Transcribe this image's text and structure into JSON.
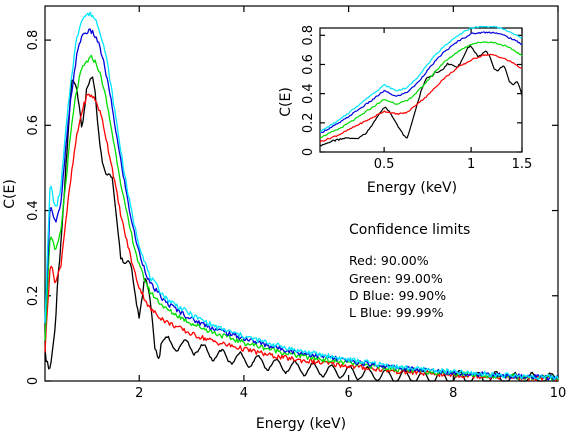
{
  "chart_data": [
    {
      "type": "line",
      "xlabel": "Energy (keV)",
      "ylabel": "C(E)",
      "xlim": [
        0.2,
        10
      ],
      "ylim": [
        0,
        0.88
      ],
      "x_ticks": [
        2,
        4,
        6,
        8,
        10
      ],
      "y_ticks": [
        0,
        0.2,
        0.4,
        0.6,
        0.8
      ],
      "x_tick_labels": [
        "2",
        "4",
        "6",
        "8",
        "10"
      ],
      "y_tick_labels": [
        "0",
        "0.2",
        "0.4",
        "0.6",
        "0.8"
      ],
      "legend": {
        "title": "Confidence limits",
        "entries": [
          "Red: 90.00%",
          "Green: 99.00%",
          "D Blue: 99.90%",
          "L Blue: 99.99%"
        ]
      },
      "series": [
        {
          "color": "#000000",
          "style": "oscillating",
          "x": [
            0.2,
            0.3,
            0.4,
            0.5,
            0.6,
            0.7,
            0.8,
            0.9,
            1.0,
            1.1,
            1.2,
            1.3,
            1.4,
            1.5,
            1.6,
            1.7,
            1.8,
            1.9,
            2.0,
            2.1,
            2.2,
            2.3,
            2.5,
            3.0,
            3.5,
            4.0,
            4.5,
            5.0,
            6.0,
            7.0,
            8.0,
            9.0,
            10.0
          ],
          "y": [
            0.09,
            0.06,
            0.1,
            0.3,
            0.55,
            0.7,
            0.65,
            0.62,
            0.72,
            0.68,
            0.6,
            0.55,
            0.48,
            0.42,
            0.36,
            0.3,
            0.25,
            0.21,
            0.19,
            0.24,
            0.16,
            0.1,
            0.09,
            0.08,
            0.06,
            0.05,
            0.04,
            0.03,
            0.02,
            0.01,
            0.008,
            0.005,
            0.003
          ]
        },
        {
          "color": "#ff0000",
          "x": [
            0.2,
            0.3,
            0.4,
            0.5,
            0.6,
            0.7,
            0.8,
            0.9,
            1.0,
            1.1,
            1.2,
            1.3,
            1.4,
            1.5,
            1.6,
            1.7,
            1.8,
            1.9,
            2.0,
            2.2,
            2.5,
            3.0,
            3.5,
            4.0,
            4.5,
            5.0,
            6.0,
            7.0,
            8.0,
            9.0,
            10.0
          ],
          "y": [
            0.07,
            0.28,
            0.23,
            0.27,
            0.38,
            0.48,
            0.57,
            0.63,
            0.67,
            0.67,
            0.65,
            0.61,
            0.55,
            0.49,
            0.42,
            0.36,
            0.31,
            0.26,
            0.22,
            0.17,
            0.14,
            0.11,
            0.09,
            0.075,
            0.06,
            0.05,
            0.035,
            0.022,
            0.014,
            0.009,
            0.005
          ]
        },
        {
          "color": "#00dd00",
          "x": [
            0.2,
            0.3,
            0.4,
            0.5,
            0.6,
            0.7,
            0.8,
            0.9,
            1.0,
            1.1,
            1.2,
            1.3,
            1.4,
            1.5,
            1.6,
            1.7,
            1.8,
            1.9,
            2.0,
            2.2,
            2.5,
            3.0,
            3.5,
            4.0,
            4.5,
            5.0,
            6.0,
            7.0,
            8.0,
            9.0,
            10.0
          ],
          "y": [
            0.1,
            0.35,
            0.3,
            0.35,
            0.47,
            0.59,
            0.68,
            0.73,
            0.75,
            0.76,
            0.74,
            0.7,
            0.64,
            0.57,
            0.5,
            0.43,
            0.37,
            0.32,
            0.27,
            0.21,
            0.17,
            0.135,
            0.11,
            0.09,
            0.075,
            0.06,
            0.042,
            0.027,
            0.018,
            0.011,
            0.006
          ]
        },
        {
          "color": "#0000dd",
          "x": [
            0.2,
            0.3,
            0.4,
            0.5,
            0.6,
            0.7,
            0.8,
            0.9,
            1.0,
            1.1,
            1.2,
            1.3,
            1.4,
            1.5,
            1.6,
            1.7,
            1.8,
            1.9,
            2.0,
            2.2,
            2.5,
            3.0,
            3.5,
            4.0,
            4.5,
            5.0,
            6.0,
            7.0,
            8.0,
            9.0,
            10.0
          ],
          "y": [
            0.13,
            0.42,
            0.37,
            0.41,
            0.55,
            0.67,
            0.76,
            0.81,
            0.82,
            0.82,
            0.8,
            0.76,
            0.7,
            0.63,
            0.55,
            0.48,
            0.41,
            0.35,
            0.3,
            0.23,
            0.185,
            0.145,
            0.12,
            0.1,
            0.082,
            0.068,
            0.047,
            0.03,
            0.02,
            0.012,
            0.007
          ]
        },
        {
          "color": "#00e5ff",
          "x": [
            0.2,
            0.3,
            0.4,
            0.5,
            0.6,
            0.7,
            0.8,
            0.9,
            1.0,
            1.1,
            1.2,
            1.3,
            1.4,
            1.5,
            1.6,
            1.7,
            1.8,
            1.9,
            2.0,
            2.2,
            2.5,
            3.0,
            3.5,
            4.0,
            4.5,
            5.0,
            6.0,
            7.0,
            8.0,
            9.0,
            10.0
          ],
          "y": [
            0.14,
            0.47,
            0.4,
            0.45,
            0.59,
            0.71,
            0.8,
            0.85,
            0.86,
            0.86,
            0.84,
            0.8,
            0.74,
            0.66,
            0.58,
            0.5,
            0.43,
            0.37,
            0.32,
            0.245,
            0.195,
            0.155,
            0.125,
            0.105,
            0.088,
            0.072,
            0.05,
            0.032,
            0.021,
            0.013,
            0.008
          ]
        }
      ]
    },
    {
      "type": "line",
      "xlabel": "Energy (keV)",
      "ylabel": "C(E)",
      "xscale": "log",
      "xlim": [
        0.3,
        1.5
      ],
      "ylim": [
        0,
        0.85
      ],
      "x_ticks": [
        0.5,
        1,
        1.5
      ],
      "y_ticks": [
        0,
        0.2,
        0.4,
        0.6,
        0.8
      ],
      "x_tick_labels": [
        "0.5",
        "1",
        "1.5"
      ],
      "y_tick_labels": [
        "0",
        "0.2",
        "0.4",
        "0.6",
        "0.8"
      ],
      "series": [
        {
          "color": "#000000",
          "style": "oscillating",
          "x": [
            0.3,
            0.35,
            0.4,
            0.45,
            0.5,
            0.55,
            0.6,
            0.65,
            0.7,
            0.75,
            0.8,
            0.9,
            1.0,
            1.1,
            1.2,
            1.3,
            1.4,
            1.5
          ],
          "y": [
            0.06,
            0.05,
            0.1,
            0.2,
            0.28,
            0.2,
            0.12,
            0.3,
            0.5,
            0.58,
            0.55,
            0.62,
            0.7,
            0.68,
            0.6,
            0.55,
            0.48,
            0.4
          ]
        },
        {
          "color": "#ff0000",
          "x": [
            0.3,
            0.35,
            0.4,
            0.45,
            0.5,
            0.55,
            0.6,
            0.65,
            0.7,
            0.75,
            0.8,
            0.9,
            1.0,
            1.1,
            1.2,
            1.3,
            1.4,
            1.5
          ],
          "y": [
            0.07,
            0.12,
            0.18,
            0.23,
            0.28,
            0.26,
            0.27,
            0.33,
            0.38,
            0.44,
            0.5,
            0.58,
            0.63,
            0.665,
            0.665,
            0.64,
            0.61,
            0.57
          ]
        },
        {
          "color": "#00dd00",
          "x": [
            0.3,
            0.35,
            0.4,
            0.45,
            0.5,
            0.55,
            0.6,
            0.65,
            0.7,
            0.75,
            0.8,
            0.9,
            1.0,
            1.1,
            1.2,
            1.3,
            1.4,
            1.5
          ],
          "y": [
            0.1,
            0.16,
            0.23,
            0.3,
            0.36,
            0.33,
            0.35,
            0.41,
            0.48,
            0.55,
            0.61,
            0.69,
            0.74,
            0.755,
            0.75,
            0.73,
            0.7,
            0.66
          ]
        },
        {
          "color": "#0000dd",
          "x": [
            0.3,
            0.35,
            0.4,
            0.45,
            0.5,
            0.55,
            0.6,
            0.65,
            0.7,
            0.75,
            0.8,
            0.9,
            1.0,
            1.1,
            1.2,
            1.3,
            1.4,
            1.5
          ],
          "y": [
            0.13,
            0.2,
            0.28,
            0.35,
            0.42,
            0.38,
            0.41,
            0.47,
            0.55,
            0.62,
            0.68,
            0.76,
            0.81,
            0.82,
            0.82,
            0.8,
            0.77,
            0.74
          ]
        },
        {
          "color": "#00e5ff",
          "x": [
            0.3,
            0.35,
            0.4,
            0.45,
            0.5,
            0.55,
            0.6,
            0.65,
            0.7,
            0.75,
            0.8,
            0.9,
            1.0,
            1.1,
            1.2,
            1.3,
            1.4,
            1.5
          ],
          "y": [
            0.14,
            0.22,
            0.31,
            0.39,
            0.46,
            0.42,
            0.44,
            0.51,
            0.59,
            0.66,
            0.72,
            0.8,
            0.85,
            0.86,
            0.86,
            0.84,
            0.81,
            0.78
          ]
        }
      ]
    }
  ]
}
